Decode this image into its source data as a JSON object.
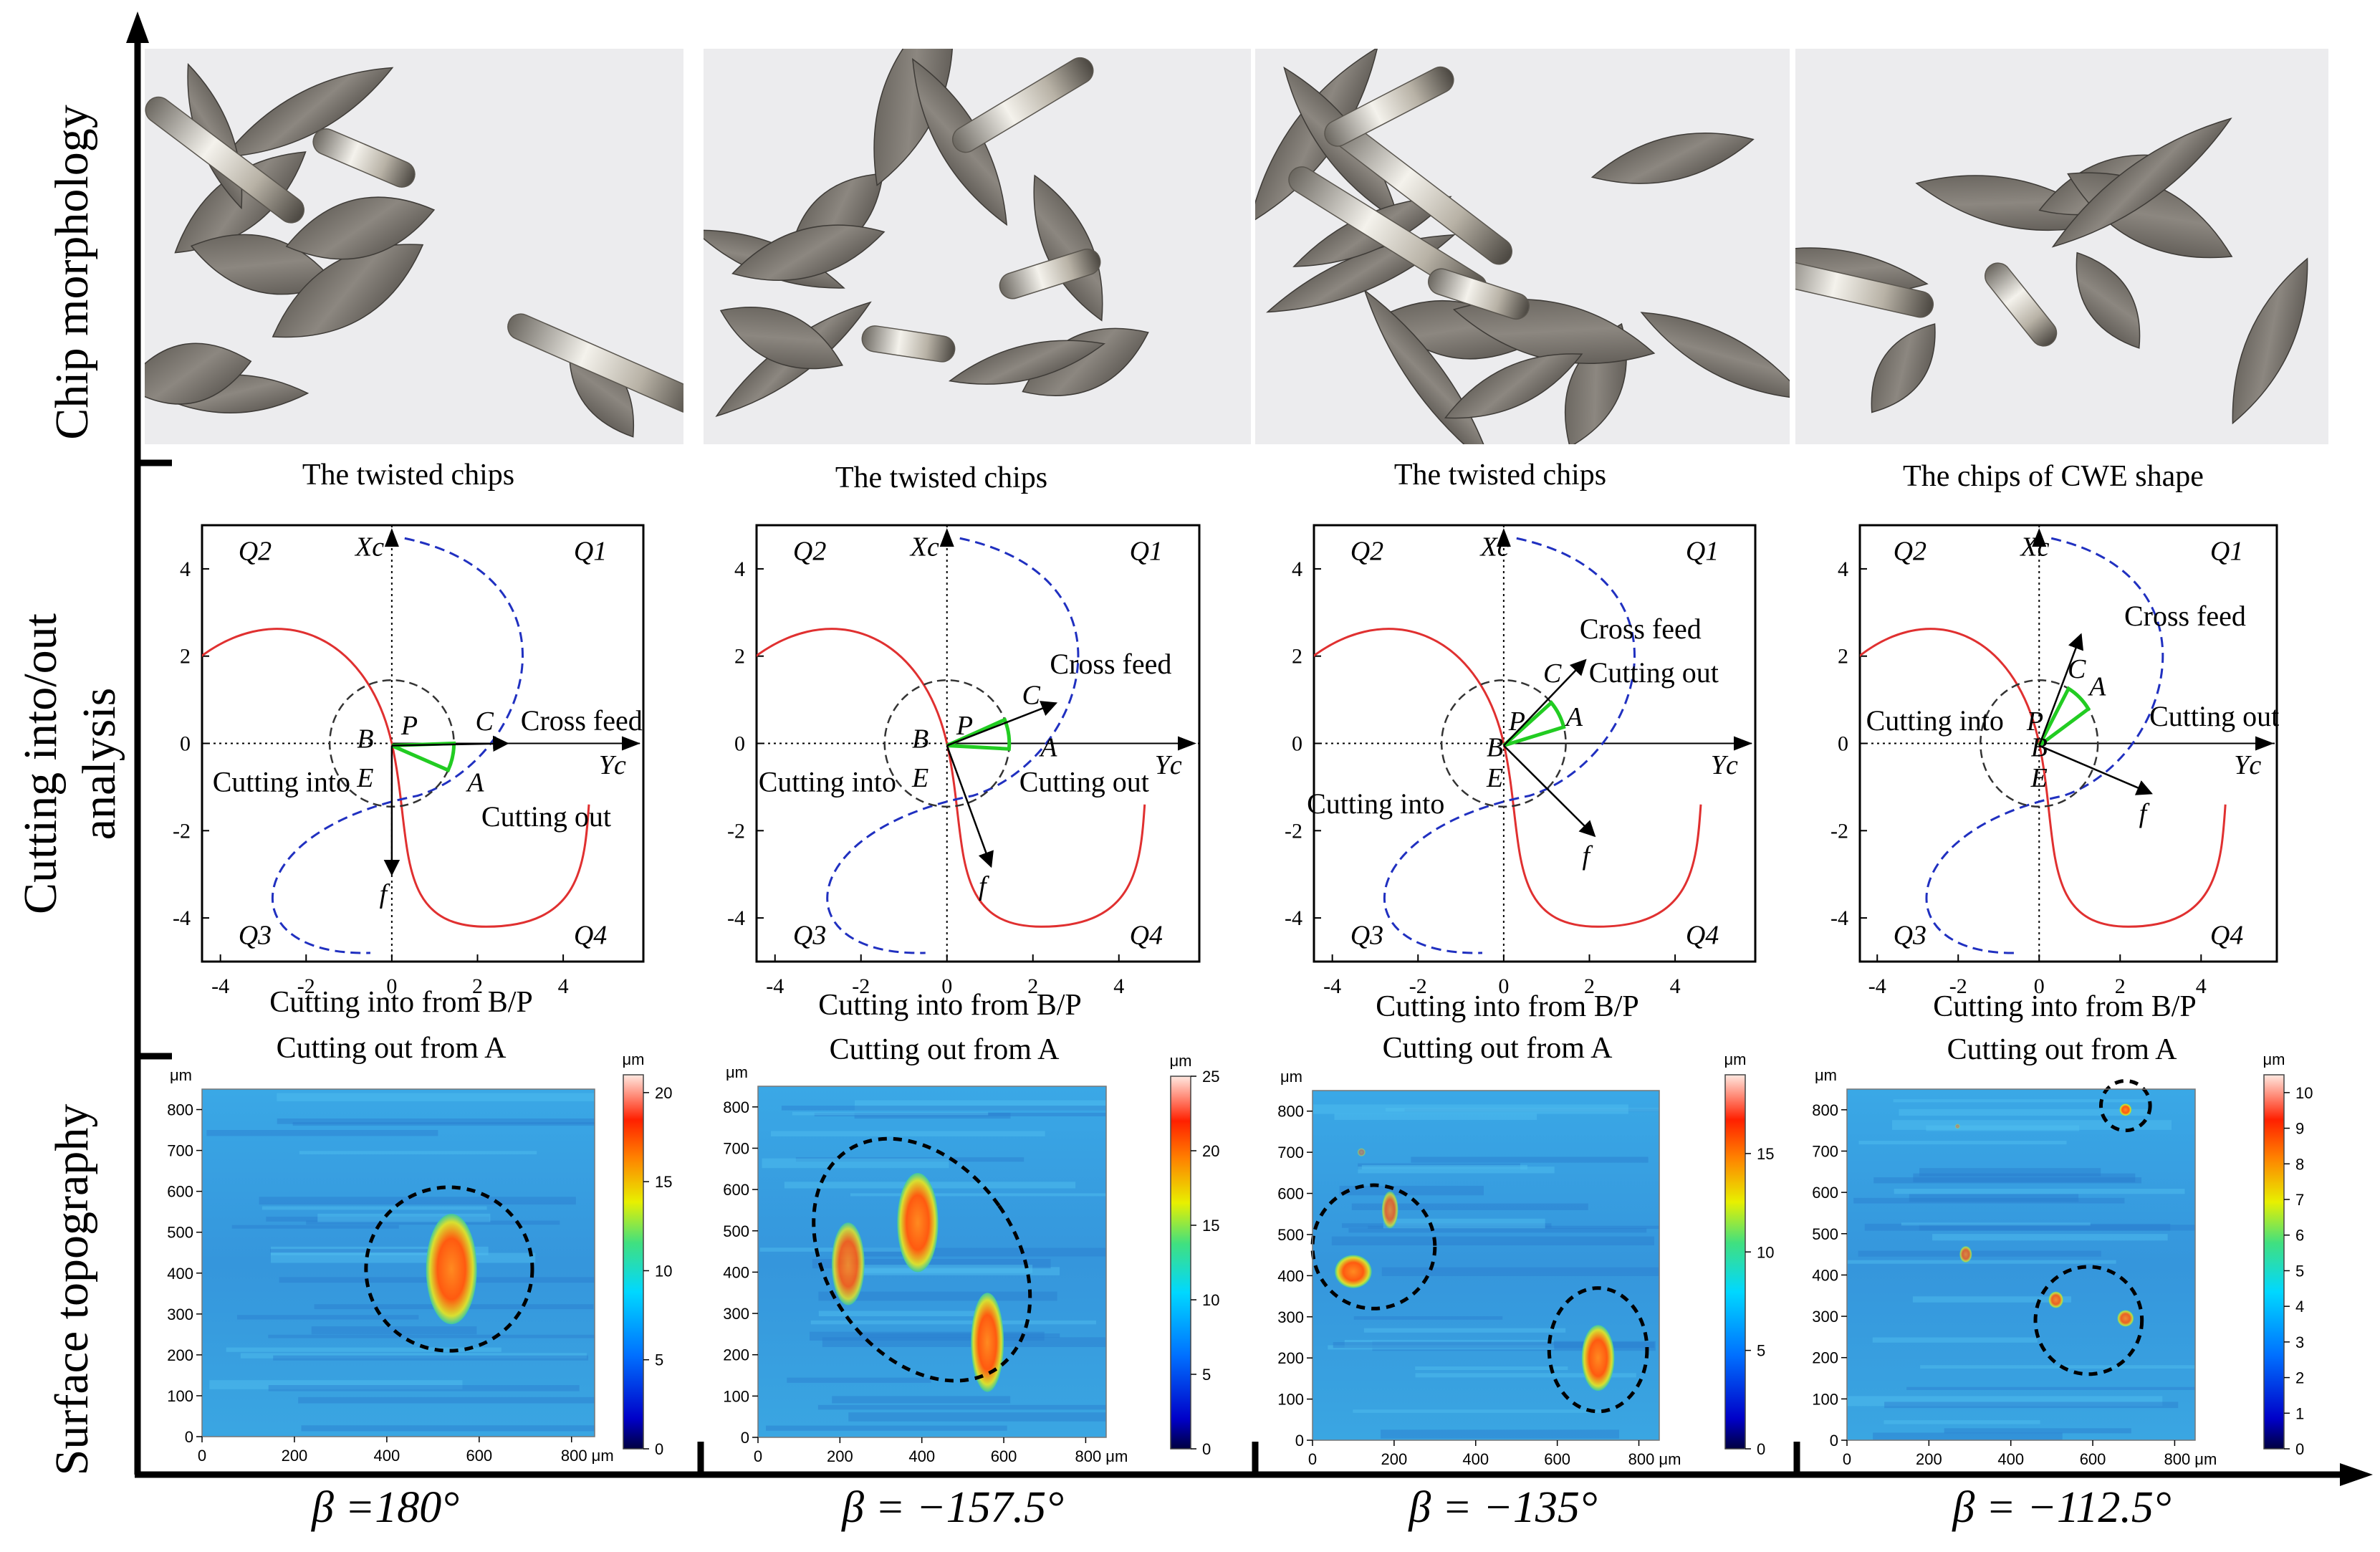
{
  "row_labels": {
    "chip_morphology": "Chip morphology",
    "cutting_analysis_line1": "Cutting into/out",
    "cutting_analysis_line2": "analysis",
    "surface_topography": "Surface topography"
  },
  "columns": [
    {
      "beta_label": "β =180°",
      "chip_caption": "The twisted chips",
      "diagram": {
        "quadrants": [
          "Q2",
          "Q1",
          "Q3",
          "Q4"
        ],
        "axis_x_label": "Xc",
        "axis_y_label": "Yc",
        "points": [
          "P",
          "B",
          "E",
          "C",
          "A"
        ],
        "feed_label": "f",
        "cross_feed_label": "Cross feed",
        "cutting_into_label": "Cutting into",
        "cutting_out_label": "Cutting out",
        "x_ticks": [
          "-4",
          "-2",
          "0",
          "2",
          "4"
        ],
        "y_ticks": [
          "4",
          "2",
          "0",
          "-2",
          "-4"
        ],
        "caption_into": "Cutting into from  B/P",
        "caption_out": "Cutting out from A"
      },
      "topography": {
        "unit": "μm",
        "x_ticks": [
          "0",
          "200",
          "400",
          "600",
          "800 μm"
        ],
        "y_ticks": [
          "800",
          "700",
          "600",
          "500",
          "400",
          "300",
          "200",
          "100",
          "0"
        ],
        "colorbar_max": 21,
        "colorbar_ticks": [
          "20",
          "15",
          "10",
          "5",
          "0"
        ]
      }
    },
    {
      "beta_label": "β = −157.5°",
      "chip_caption": "The twisted chips",
      "diagram": {
        "quadrants": [
          "Q2",
          "Q1",
          "Q3",
          "Q4"
        ],
        "axis_x_label": "Xc",
        "axis_y_label": "Yc",
        "points": [
          "P",
          "B",
          "E",
          "C",
          "A"
        ],
        "feed_label": "f",
        "cross_feed_label": "Cross feed",
        "cutting_into_label": "Cutting into",
        "cutting_out_label": "Cutting out",
        "x_ticks": [
          "-4",
          "-2",
          "0",
          "2",
          "4"
        ],
        "y_ticks": [
          "4",
          "2",
          "0",
          "-2",
          "-4"
        ],
        "caption_into": "Cutting into from  B/P",
        "caption_out": "Cutting out from A"
      },
      "topography": {
        "unit": "μm",
        "x_ticks": [
          "0",
          "200",
          "400",
          "600",
          "800 μm"
        ],
        "y_ticks": [
          "800",
          "700",
          "600",
          "500",
          "400",
          "300",
          "200",
          "100",
          "0"
        ],
        "colorbar_max": 25,
        "colorbar_ticks": [
          "25",
          "20",
          "15",
          "10",
          "5",
          "0"
        ]
      }
    },
    {
      "beta_label": "β = −135°",
      "chip_caption": "The twisted chips",
      "diagram": {
        "quadrants": [
          "Q2",
          "Q1",
          "Q3",
          "Q4"
        ],
        "axis_x_label": "Xc",
        "axis_y_label": "Yc",
        "points": [
          "P",
          "B",
          "E",
          "C",
          "A"
        ],
        "feed_label": "f",
        "cross_feed_label": "Cross feed",
        "cutting_into_label": "Cutting into",
        "cutting_out_label": "Cutting out",
        "x_ticks": [
          "-4",
          "-2",
          "0",
          "2",
          "4"
        ],
        "y_ticks": [
          "4",
          "2",
          "0",
          "-2",
          "-4"
        ],
        "caption_into": "Cutting into from  B/P",
        "caption_out": "Cutting out from A"
      },
      "topography": {
        "unit": "μm",
        "x_ticks": [
          "0",
          "200",
          "400",
          "600",
          "800 μm"
        ],
        "y_ticks": [
          "800",
          "700",
          "600",
          "500",
          "400",
          "300",
          "200",
          "100",
          "0"
        ],
        "colorbar_max": 19,
        "colorbar_ticks": [
          "15",
          "10",
          "5",
          "0"
        ]
      }
    },
    {
      "beta_label": "β = −112.5°",
      "chip_caption": "The chips of CWE shape",
      "diagram": {
        "quadrants": [
          "Q2",
          "Q1",
          "Q3",
          "Q4"
        ],
        "axis_x_label": "Xc",
        "axis_y_label": "Yc",
        "points": [
          "P",
          "B",
          "E",
          "C",
          "A"
        ],
        "feed_label": "f",
        "cross_feed_label": "Cross feed",
        "cutting_into_label": "Cutting into",
        "cutting_out_label": "Cutting out",
        "x_ticks": [
          "-4",
          "-2",
          "0",
          "2",
          "4"
        ],
        "y_ticks": [
          "4",
          "2",
          "0",
          "-2",
          "-4"
        ],
        "caption_into": "Cutting into from  B/P",
        "caption_out": "Cutting out from A"
      },
      "topography": {
        "unit": "μm",
        "x_ticks": [
          "0",
          "200",
          "400",
          "600",
          "800 μm"
        ],
        "y_ticks": [
          "800",
          "700",
          "600",
          "500",
          "400",
          "300",
          "200",
          "100",
          "0"
        ],
        "colorbar_max": 10.5,
        "colorbar_ticks": [
          "10",
          "9",
          "8",
          "7",
          "6",
          "5",
          "4",
          "3",
          "2",
          "1",
          "0"
        ]
      }
    }
  ],
  "colors": {
    "red_curve": "#e03030",
    "blue_curve": "#2030c0",
    "green_arc": "#22cc22",
    "paper": "#ececee",
    "topo_base": "#3aa8e8"
  }
}
